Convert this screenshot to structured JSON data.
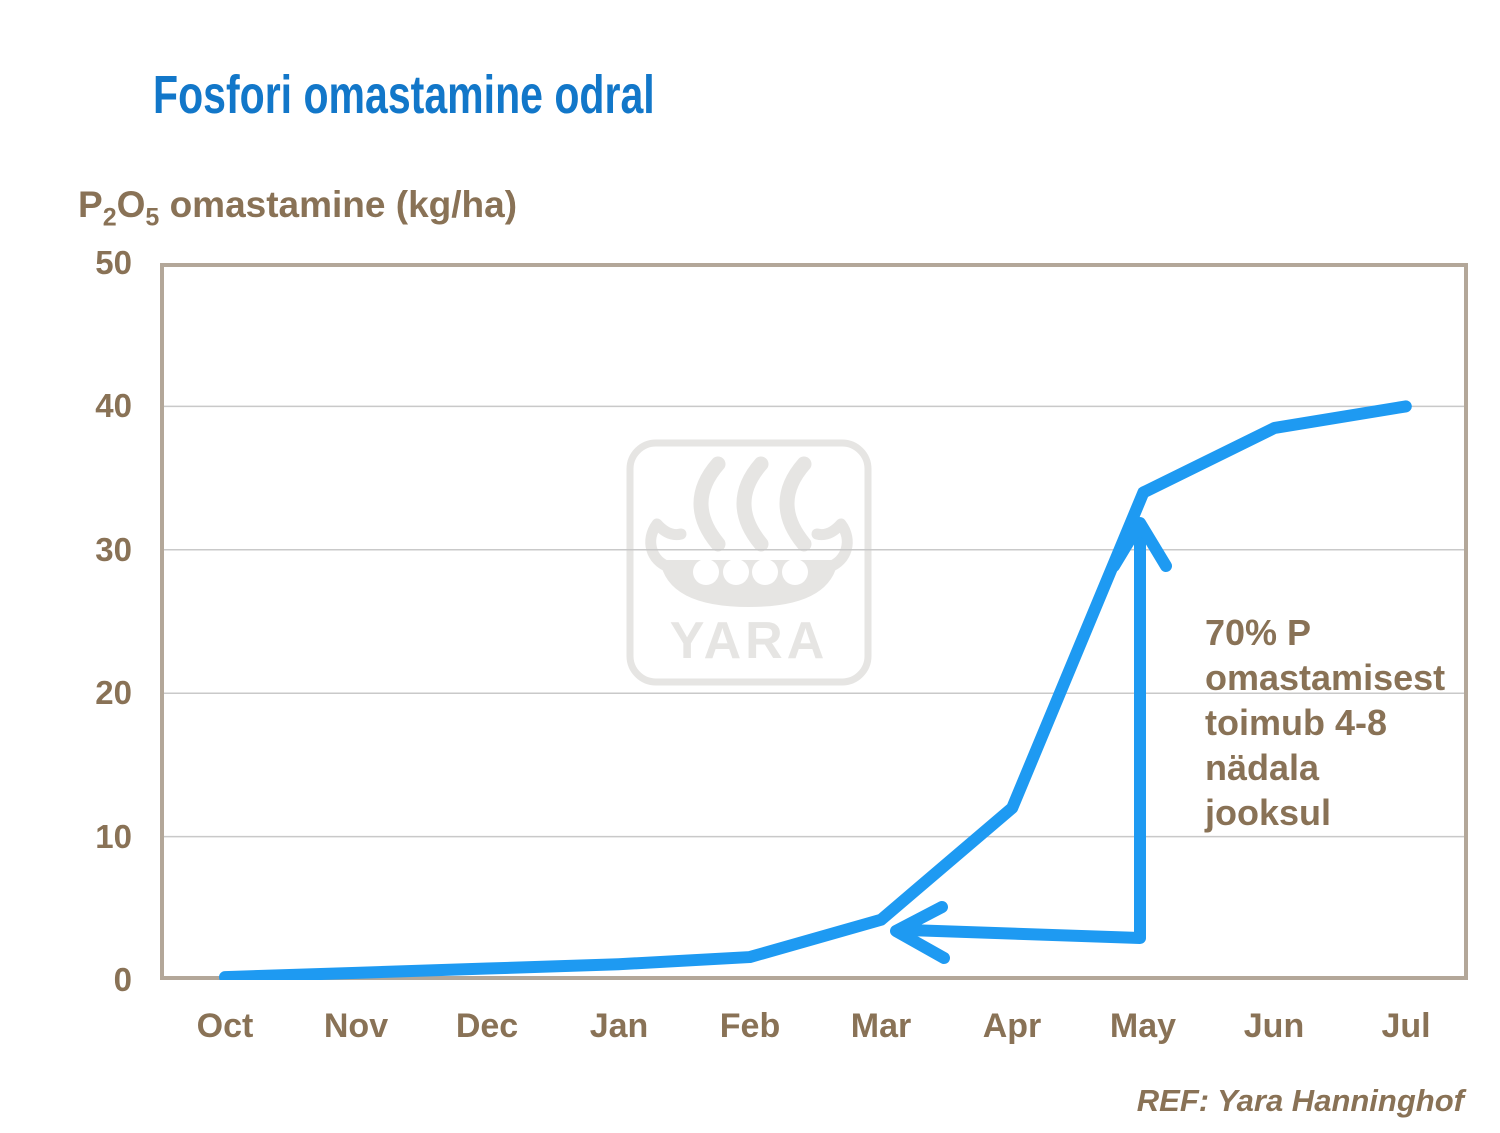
{
  "title": "Fosfori omastamine odral",
  "y_axis_title": {
    "p": "P",
    "sub2": "2",
    "o": "O",
    "sub5": "5",
    "rest": "omastamine (kg/ha)"
  },
  "chart_data": {
    "type": "line",
    "title": "Fosfori omastamine odral",
    "ylabel": "P2O5 omastamine (kg/ha)",
    "xlabel": "",
    "categories": [
      "Oct",
      "Nov",
      "Dec",
      "Jan",
      "Feb",
      "Mar",
      "Apr",
      "May",
      "Jun",
      "Jul"
    ],
    "series": [
      {
        "name": "P2O5 omastamine",
        "values": [
          0.2,
          0.5,
          0.8,
          1.1,
          1.6,
          4.2,
          12,
          34,
          38.5,
          40
        ],
        "color": "#1e9af2"
      }
    ],
    "ylim": [
      0,
      50
    ],
    "yticks": [
      0,
      10,
      20,
      30,
      40,
      50
    ],
    "grid": "horizontal",
    "legend": "none",
    "annotation": "70% P omastamisest toimub 4-8 nädala jooksul",
    "annotation_arrow": "double-headed elbow arrow pointing left at Mar value and up at May value"
  },
  "yticks_display": {
    "t50": "50",
    "t40": "40",
    "t30": "30",
    "t20": "20",
    "t10": "10",
    "t0": "0"
  },
  "annotation": {
    "text": "70% P\nomastamisest\ntoimub 4-8\nnädala\njooksul"
  },
  "watermark": {
    "brand": "YARA"
  },
  "footer": {
    "ref": "REF: Yara Hanninghof"
  },
  "colors": {
    "title_blue": "#1277c9",
    "line_blue": "#1e9af2",
    "text_brown": "#897256",
    "frame_tan": "#b3a799",
    "gridline_gray": "#c9c9c9",
    "watermark_gray": "#e6e5e3"
  }
}
